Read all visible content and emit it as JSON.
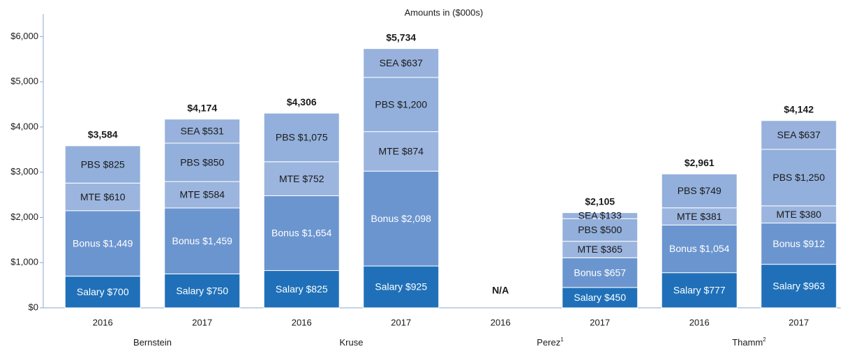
{
  "chart_data": {
    "type": "stacked_bar",
    "subtitle": "Amounts in ($000s)",
    "categories": [
      "2016",
      "2017",
      "2016",
      "2017",
      "2016",
      "2017",
      "2016",
      "2017"
    ],
    "groups": [
      {
        "name": "Bernstein"
      },
      {
        "name": "Kruse"
      },
      {
        "name": "Perez",
        "footnote": "1"
      },
      {
        "name": "Thamm",
        "footnote": "2"
      }
    ],
    "series": [
      {
        "name": "Salary",
        "color": "#1f70b8",
        "label_color": "#ffffff",
        "values": [
          700,
          750,
          825,
          925,
          null,
          450,
          777,
          963
        ],
        "value_labels": [
          "Salary $700",
          "Salary $750",
          "Salary $825",
          "Salary $925",
          null,
          "Salary $450",
          "Salary $777",
          "Salary $963"
        ]
      },
      {
        "name": "Bonus",
        "color": "#6b95cf",
        "label_color": "#ffffff",
        "values": [
          1449,
          1459,
          1654,
          2098,
          null,
          657,
          1054,
          912
        ],
        "value_labels": [
          "Bonus $1,449",
          "Bonus $1,459",
          "Bonus $1,654",
          "Bonus $2,098",
          null,
          "Bonus $657",
          "Bonus $1,054",
          "Bonus $912"
        ]
      },
      {
        "name": "MTE",
        "color": "#9bb5de",
        "label_color": "#1a1a1a",
        "values": [
          610,
          584,
          752,
          874,
          null,
          365,
          381,
          380
        ],
        "value_labels": [
          "MTE $610",
          "MTE $584",
          "MTE $752",
          "MTE $874",
          null,
          "MTE $365",
          "MTE $381",
          "MTE $380"
        ]
      },
      {
        "name": "PBS",
        "color": "#93b0dc",
        "label_color": "#1a1a1a",
        "values": [
          825,
          850,
          1075,
          1200,
          null,
          500,
          749,
          1250
        ],
        "value_labels": [
          "PBS $825",
          "PBS $850",
          "PBS $1,075",
          "PBS $1,200",
          null,
          "PBS $500",
          "PBS $749",
          "PBS $1,250"
        ]
      },
      {
        "name": "SEA",
        "color": "#98b2dd",
        "label_color": "#1a1a1a",
        "values": [
          null,
          531,
          null,
          637,
          null,
          133,
          null,
          637
        ],
        "value_labels": [
          null,
          "SEA $531",
          null,
          "SEA $637",
          null,
          "SEA $133",
          null,
          "SEA $637"
        ]
      }
    ],
    "totals": [
      3584,
      4174,
      4306,
      5734,
      null,
      2105,
      2961,
      4142
    ],
    "total_labels": [
      "$3,584",
      "$4,174",
      "$4,306",
      "$5,734",
      "N/A",
      "$2,105",
      "$2,961",
      "$4,142"
    ],
    "ylim": [
      0,
      6500
    ],
    "yticks": [
      {
        "value": 0,
        "label": "$0"
      },
      {
        "value": 1000,
        "label": "$1,000"
      },
      {
        "value": 2000,
        "label": "$2,000"
      },
      {
        "value": 3000,
        "label": "$3,000"
      },
      {
        "value": 4000,
        "label": "$4,000"
      },
      {
        "value": 5000,
        "label": "$5,000"
      },
      {
        "value": 6000,
        "label": "$6,000"
      }
    ]
  }
}
